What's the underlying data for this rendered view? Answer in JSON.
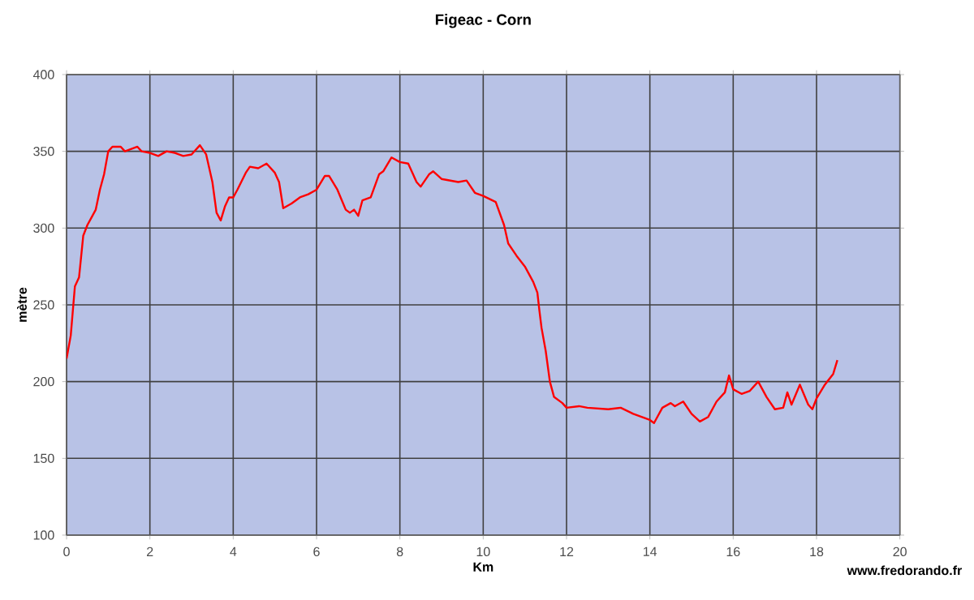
{
  "chart_data": {
    "type": "line",
    "title": "Figeac - Corn",
    "xlabel": "Km",
    "ylabel": "mètre",
    "annotations": [
      "www.fredorando.fr"
    ],
    "xlim": [
      0,
      20
    ],
    "ylim": [
      100,
      400
    ],
    "xticks": [
      0,
      2,
      4,
      6,
      8,
      10,
      12,
      14,
      16,
      18,
      20
    ],
    "yticks": [
      100,
      150,
      200,
      250,
      300,
      350,
      400
    ],
    "grid": true,
    "marker": "none",
    "line_style": "solid",
    "series": [
      {
        "color": "#ff0000",
        "x": [
          0,
          0.1,
          0.2,
          0.3,
          0.4,
          0.5,
          0.6,
          0.7,
          0.8,
          0.9,
          1.0,
          1.1,
          1.3,
          1.4,
          1.5,
          1.7,
          1.8,
          2.0,
          2.2,
          2.4,
          2.6,
          2.8,
          3.0,
          3.2,
          3.35,
          3.5,
          3.6,
          3.7,
          3.8,
          3.9,
          4.0,
          4.1,
          4.3,
          4.4,
          4.6,
          4.8,
          5.0,
          5.1,
          5.2,
          5.4,
          5.6,
          5.8,
          6.0,
          6.2,
          6.3,
          6.5,
          6.7,
          6.8,
          6.9,
          7.0,
          7.1,
          7.3,
          7.5,
          7.6,
          7.8,
          8.0,
          8.2,
          8.4,
          8.5,
          8.7,
          8.8,
          9.0,
          9.2,
          9.4,
          9.6,
          9.8,
          10.0,
          10.3,
          10.5,
          10.6,
          10.8,
          11.0,
          11.1,
          11.2,
          11.3,
          11.35,
          11.4,
          11.5,
          11.6,
          11.7,
          11.9,
          12.0,
          12.3,
          12.5,
          13.0,
          13.3,
          13.6,
          14.0,
          14.1,
          14.3,
          14.5,
          14.6,
          14.8,
          15.0,
          15.2,
          15.4,
          15.6,
          15.8,
          15.9,
          16.0,
          16.2,
          16.4,
          16.6,
          16.8,
          17.0,
          17.2,
          17.3,
          17.4,
          17.6,
          17.8,
          17.9,
          18.0,
          18.2,
          18.4,
          18.5
        ],
        "values": [
          215,
          230,
          262,
          268,
          295,
          302,
          307,
          312,
          325,
          335,
          350,
          353,
          353,
          350,
          351,
          353,
          350,
          349,
          347,
          350,
          349,
          347,
          348,
          354,
          348,
          330,
          310,
          305,
          314,
          320,
          320,
          325,
          336,
          340,
          339,
          342,
          336,
          330,
          313,
          316,
          320,
          322,
          325,
          334,
          334,
          325,
          312,
          310,
          312,
          308,
          318,
          320,
          335,
          337,
          346,
          343,
          342,
          330,
          327,
          335,
          337,
          332,
          331,
          330,
          331,
          323,
          321,
          317,
          302,
          290,
          282,
          275,
          270,
          265,
          258,
          246,
          235,
          220,
          200,
          190,
          186,
          183,
          184,
          183,
          182,
          183,
          179,
          175,
          173,
          183,
          186,
          184,
          187,
          179,
          174,
          177,
          187,
          193,
          204,
          195,
          192,
          194,
          200,
          190,
          182,
          183,
          193,
          185,
          198,
          185,
          182,
          189,
          198,
          205,
          214
        ]
      }
    ]
  }
}
